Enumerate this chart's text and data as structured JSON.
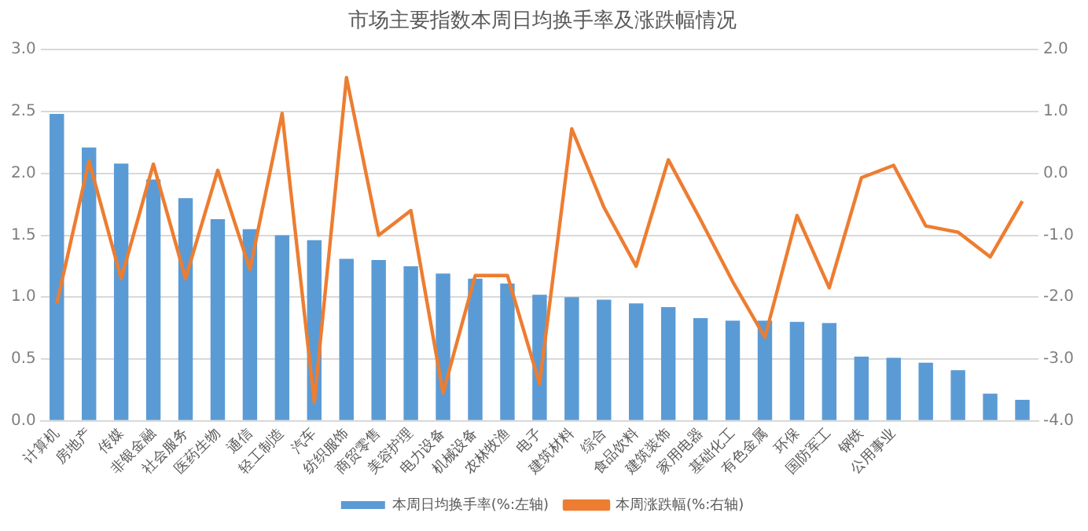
{
  "chart_data": {
    "type": "bar",
    "title": "市场主要指数本周日均换手率及涨跌幅情况",
    "categories": [
      "计算机",
      "房地产",
      "传媒",
      "非银金融",
      "社会服务",
      "医药生物",
      "通信",
      "轻工制造",
      "汽车",
      "纺织服饰",
      "商贸零售",
      "美容护理",
      "电力设备",
      "机械设备",
      "农林牧渔",
      "电子",
      "建筑材料",
      "综合",
      "食品饮料",
      "建筑装饰",
      "家用电器",
      "基础化工",
      "有色金属",
      "环保",
      "国防军工",
      "钢铁",
      "公用事业",
      null,
      null,
      null,
      null
    ],
    "series": [
      {
        "name": "本周日均换手率(%:左轴)",
        "color": "#5b9bd5",
        "values": [
          2.48,
          2.21,
          2.08,
          1.95,
          1.8,
          1.63,
          1.55,
          1.5,
          1.46,
          1.31,
          1.3,
          1.25,
          1.19,
          1.15,
          1.11,
          1.02,
          1.0,
          0.98,
          0.95,
          0.92,
          0.83,
          0.81,
          0.81,
          0.8,
          0.79,
          0.52,
          0.51,
          0.47,
          0.41,
          0.22,
          0.17
        ]
      },
      {
        "name": "本周涨跌幅(%:右轴)",
        "type": "line",
        "axis": "y2",
        "color": "#ed7d31",
        "values": [
          -2.1,
          0.2,
          -1.7,
          0.15,
          -1.7,
          0.05,
          -1.55,
          0.97,
          -3.7,
          1.55,
          -1.0,
          -0.6,
          -3.55,
          -1.65,
          -1.65,
          -3.4,
          0.72,
          -0.55,
          -1.5,
          0.22,
          -0.75,
          -1.75,
          -2.65,
          -0.68,
          -1.85,
          -0.07,
          0.13,
          -0.85,
          -0.95,
          -1.35,
          -0.45
        ]
      }
    ],
    "ylim": [
      0,
      3
    ],
    "yticks": [
      {
        "value": 0,
        "label": "0.0"
      },
      {
        "value": 0.5,
        "label": "0.5"
      },
      {
        "value": 1,
        "label": "1.0"
      },
      {
        "value": 1.5,
        "label": "1.5"
      },
      {
        "value": 2,
        "label": "2.0"
      },
      {
        "value": 2.5,
        "label": "2.5"
      },
      {
        "value": 3,
        "label": "3.0"
      }
    ],
    "y2lim": [
      -4,
      2
    ],
    "y2ticks": [
      {
        "value": -4,
        "label": "-4.0"
      },
      {
        "value": -3,
        "label": "-3.0"
      },
      {
        "value": -2,
        "label": "-2.0"
      },
      {
        "value": -1,
        "label": "-1.0"
      },
      {
        "value": 0,
        "label": "0.0"
      },
      {
        "value": 1,
        "label": "1.0"
      },
      {
        "value": 2,
        "label": "2.0"
      }
    ],
    "grid": "y",
    "legend": "bottom",
    "marker": "none",
    "line_style": "solid"
  }
}
